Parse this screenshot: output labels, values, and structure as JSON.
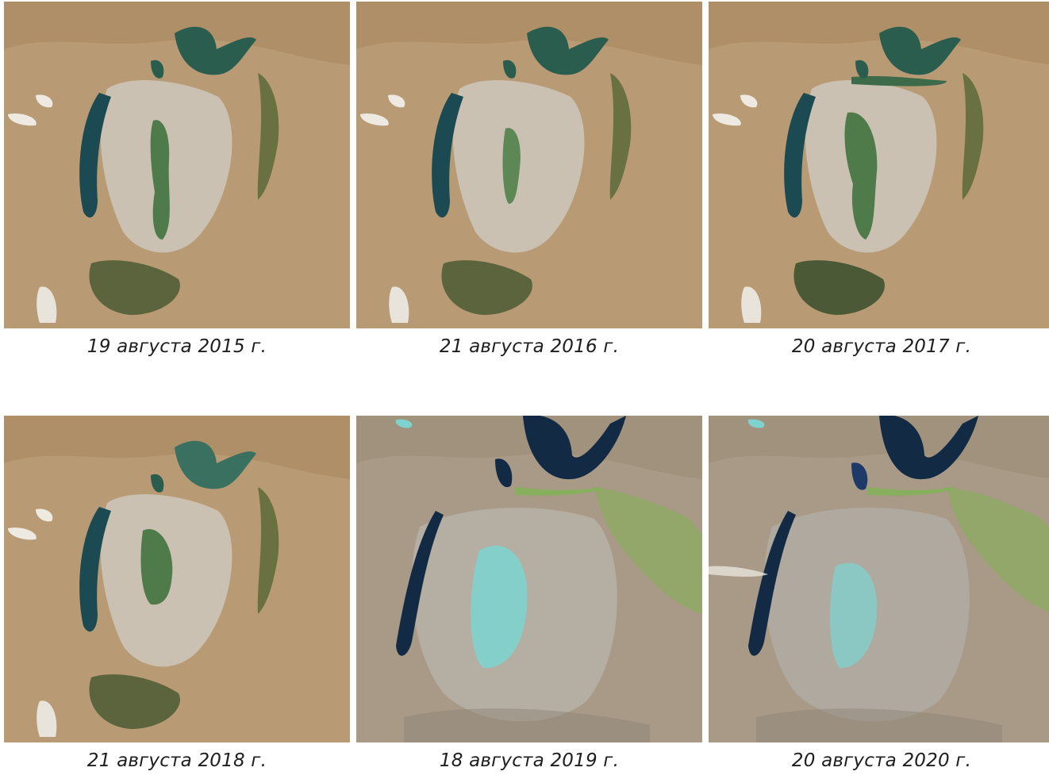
{
  "images": [
    {
      "caption": "19 августа 2015 г.",
      "palette": "natural"
    },
    {
      "caption": "21 августа 2016 г.",
      "palette": "natural"
    },
    {
      "caption": "20 августа 2017 г.",
      "palette": "natural"
    },
    {
      "caption": "21 августа 2018 г.",
      "palette": "natural"
    },
    {
      "caption": "18 августа 2019 г.",
      "palette": "falsecolor"
    },
    {
      "caption": "20 августа 2020 г.",
      "palette": "falsecolor"
    }
  ],
  "colors": {
    "desert": "#b89b74",
    "desert_dark": "#a8875f",
    "salt_flat": "#cbc3b5",
    "water_natural": "#1b4a52",
    "water_green": "#4f7b4a",
    "water_dark": "#132a45",
    "water_cyan": "#7fd3cf",
    "vegetation": "#5a6a3a",
    "vegetation_bright": "#79b84b"
  }
}
